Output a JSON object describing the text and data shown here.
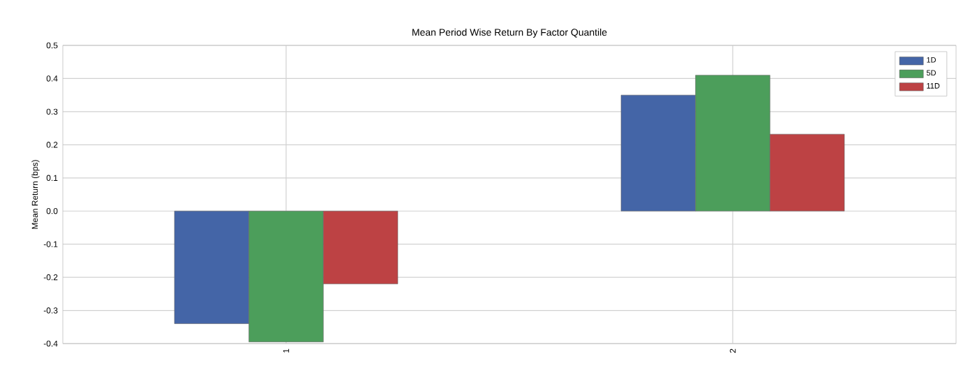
{
  "chart_data": {
    "type": "bar",
    "title": "Mean Period Wise Return By Factor Quantile",
    "ylabel": "Mean Return (bps)",
    "categories": [
      "1",
      "2"
    ],
    "series": [
      {
        "name": "1D",
        "color": "#4465a7",
        "values": [
          -0.34,
          0.35
        ]
      },
      {
        "name": "5D",
        "color": "#4c9e5b",
        "values": [
          -0.395,
          0.41
        ]
      },
      {
        "name": "11D",
        "color": "#bd4244",
        "values": [
          -0.22,
          0.232
        ]
      }
    ],
    "ylim": [
      -0.4,
      0.5
    ],
    "yticks": [
      -0.4,
      -0.3,
      -0.2,
      -0.1,
      {
        "value": 0,
        "label": "0.0"
      },
      0.1,
      0.2,
      0.3,
      0.4,
      0.5
    ],
    "grid": true,
    "legend": "top right"
  }
}
